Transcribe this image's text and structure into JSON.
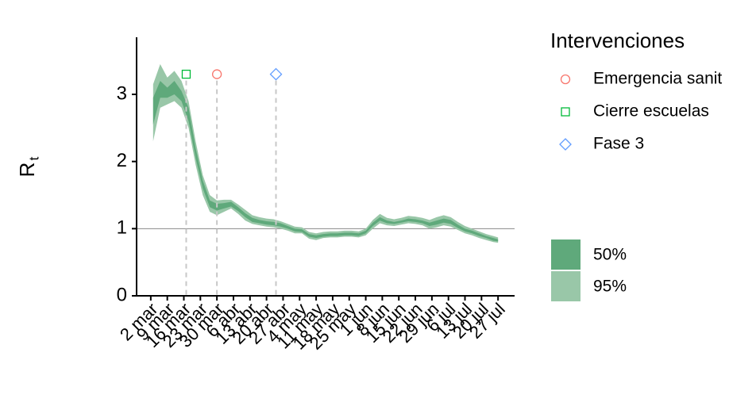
{
  "chart_data": {
    "type": "band",
    "ylabel": "R",
    "ylabel_sub": "t",
    "x": [
      "3 mar",
      "6 mar",
      "9 mar",
      "12 mar",
      "15 mar",
      "18 mar",
      "21 mar",
      "24 mar",
      "27 mar",
      "30 mar",
      "2 abr",
      "5 abr",
      "8 abr",
      "11 abr",
      "14 abr",
      "17 abr",
      "20 abr",
      "23 abr",
      "26 abr",
      "29 abr",
      "2 may",
      "5 may",
      "8 may",
      "11 may",
      "14 may",
      "17 may",
      "20 may",
      "23 may",
      "26 may",
      "29 may",
      "1 jun",
      "4 jun",
      "7 jun",
      "10 jun",
      "13 jun",
      "16 jun",
      "19 jun",
      "22 jun",
      "25 jun",
      "28 jun",
      "1 jul",
      "4 jul",
      "7 jul",
      "10 jul",
      "13 jul",
      "16 jul",
      "19 jul",
      "22 jul",
      "25 jul",
      "27 jul"
    ],
    "series": [
      {
        "name": "95%",
        "color": "#99c7a8",
        "lower": [
          2.3,
          2.8,
          2.85,
          2.9,
          2.8,
          2.5,
          1.95,
          1.5,
          1.25,
          1.2,
          1.25,
          1.3,
          1.22,
          1.12,
          1.07,
          1.05,
          1.03,
          1.02,
          1.0,
          0.97,
          0.93,
          0.93,
          0.85,
          0.83,
          0.86,
          0.87,
          0.87,
          0.88,
          0.88,
          0.87,
          0.9,
          1.0,
          1.08,
          1.05,
          1.04,
          1.06,
          1.08,
          1.07,
          1.05,
          1.0,
          1.02,
          1.05,
          1.03,
          0.98,
          0.93,
          0.9,
          0.86,
          0.83,
          0.8,
          0.79
        ],
        "upper": [
          3.15,
          3.45,
          3.25,
          3.35,
          3.2,
          2.9,
          2.3,
          1.8,
          1.5,
          1.42,
          1.43,
          1.43,
          1.36,
          1.28,
          1.2,
          1.17,
          1.15,
          1.14,
          1.11,
          1.07,
          1.03,
          1.02,
          0.95,
          0.93,
          0.95,
          0.96,
          0.96,
          0.97,
          0.97,
          0.96,
          1.0,
          1.13,
          1.22,
          1.16,
          1.14,
          1.16,
          1.19,
          1.18,
          1.16,
          1.13,
          1.17,
          1.2,
          1.17,
          1.1,
          1.04,
          1.0,
          0.96,
          0.92,
          0.89,
          0.87
        ]
      },
      {
        "name": "50%",
        "color": "#5fa97b",
        "lower": [
          2.55,
          2.95,
          2.95,
          3.0,
          2.9,
          2.6,
          2.05,
          1.6,
          1.32,
          1.27,
          1.3,
          1.33,
          1.26,
          1.17,
          1.1,
          1.08,
          1.06,
          1.05,
          1.03,
          1.0,
          0.96,
          0.95,
          0.88,
          0.86,
          0.88,
          0.89,
          0.89,
          0.9,
          0.9,
          0.89,
          0.93,
          1.04,
          1.12,
          1.08,
          1.07,
          1.09,
          1.11,
          1.1,
          1.08,
          1.04,
          1.06,
          1.09,
          1.07,
          1.01,
          0.96,
          0.93,
          0.89,
          0.86,
          0.82,
          0.81
        ],
        "upper": [
          2.95,
          3.2,
          3.1,
          3.2,
          3.05,
          2.8,
          2.2,
          1.72,
          1.42,
          1.37,
          1.38,
          1.4,
          1.32,
          1.23,
          1.16,
          1.13,
          1.11,
          1.1,
          1.08,
          1.04,
          1.0,
          0.99,
          0.92,
          0.9,
          0.92,
          0.93,
          0.93,
          0.94,
          0.94,
          0.93,
          0.97,
          1.09,
          1.17,
          1.12,
          1.1,
          1.12,
          1.15,
          1.14,
          1.12,
          1.09,
          1.12,
          1.15,
          1.13,
          1.06,
          1.0,
          0.97,
          0.93,
          0.89,
          0.86,
          0.84
        ]
      }
    ],
    "xlim": [
      "24 feb",
      "3 ago"
    ],
    "xticks": [
      "2 mar",
      "9 mar",
      "16 mar",
      "23 mar",
      "30 mar",
      "6 abr",
      "13 abr",
      "20 abr",
      "27 abr",
      "4 may",
      "11 may",
      "18 may",
      "25 may",
      "1 jun",
      "8 jun",
      "15 jun",
      "22 jun",
      "29 jun",
      "6 jul",
      "13 jul",
      "20 jul",
      "27 jul"
    ],
    "ylim": [
      0,
      3.85
    ],
    "yticks": [
      0,
      1,
      2,
      3
    ],
    "hline": 1,
    "interventions": {
      "title": "Intervenciones",
      "items": [
        {
          "name": "Emergencia sanit",
          "date": "30 mar",
          "value": 3.3,
          "marker": "circle",
          "color": "#f8766d"
        },
        {
          "name": "Cierre escuelas",
          "date": "17 mar",
          "value": 3.3,
          "marker": "square",
          "color": "#00ba38"
        },
        {
          "name": "Fase 3",
          "date": "24 abr",
          "value": 3.3,
          "marker": "diamond",
          "color": "#619cff"
        }
      ]
    }
  }
}
